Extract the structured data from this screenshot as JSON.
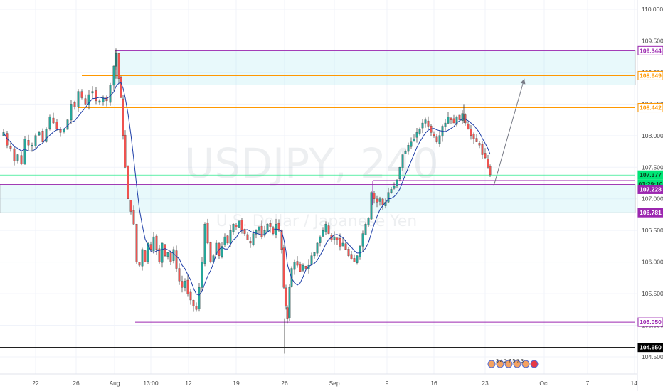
{
  "chart_data": {
    "type": "candlestick",
    "watermark": {
      "symbol": "USDJPY",
      "interval": "240",
      "description": "U.S. Dollar / Japanese Yen"
    },
    "y_axis": {
      "range": [
        104.32,
        110.22
      ],
      "ticks": [
        "110.000",
        "109.500",
        "109.000",
        "108.500",
        "108.000",
        "107.500",
        "107.000",
        "106.500",
        "106.000",
        "105.500",
        "105.000",
        "104.500"
      ]
    },
    "x_axis": {
      "ticks": [
        "22",
        "26",
        "Aug",
        "13:00",
        "12",
        "19",
        "26",
        "Sep",
        "9",
        "16",
        "23",
        "Oct",
        "7",
        "14"
      ]
    },
    "price_labels": [
      {
        "value": 109.344,
        "text": "109.344",
        "color": "#9c27b0",
        "style": "outline"
      },
      {
        "value": 108.949,
        "text": "108.949",
        "color": "#ff9800",
        "style": "outline"
      },
      {
        "value": 108.442,
        "text": "108.442",
        "color": "#ff9800",
        "style": "outline"
      },
      {
        "value": 107.377,
        "text": "107.377",
        "color": "#00e676",
        "style": "filled"
      },
      {
        "value": 107.229,
        "text": "03:29:10",
        "color": "#00e676",
        "style": "filled"
      },
      {
        "value": 107.228,
        "text": "107.228",
        "color": "#9c27b0",
        "style": "filled"
      },
      {
        "value": 106.781,
        "text": "106.781",
        "color": "#9c27b0",
        "style": "filled"
      },
      {
        "value": 105.05,
        "text": "105.050",
        "color": "#9c27b0",
        "style": "outline"
      },
      {
        "value": 104.65,
        "text": "104.650",
        "color": "#000000",
        "style": "filled"
      }
    ],
    "zones": [
      {
        "from": 108.8,
        "to": 109.344,
        "color": "#b2ebf2"
      },
      {
        "from": 106.781,
        "to": 107.228,
        "color": "#b2ebf2"
      }
    ],
    "levels": [
      {
        "value": 108.949,
        "color": "#ff9800"
      },
      {
        "value": 108.442,
        "color": "#ff9800"
      },
      {
        "value": 107.377,
        "color": "#00e676"
      },
      {
        "value": 105.05,
        "color": "#9c27b0"
      },
      {
        "value": 104.65,
        "color": "#000000"
      },
      {
        "value": 107.29,
        "color": "#9c27b0"
      }
    ],
    "projection": {
      "from": 107.2,
      "to": 108.9,
      "color": "#787b86"
    },
    "ohlc_close_path": [
      [
        0,
        108.0
      ],
      [
        5,
        108.05
      ],
      [
        10,
        107.85
      ],
      [
        15,
        107.8
      ],
      [
        20,
        107.6
      ],
      [
        25,
        107.7
      ],
      [
        30,
        107.55
      ],
      [
        35,
        107.95
      ],
      [
        40,
        107.85
      ],
      [
        45,
        107.85
      ],
      [
        50,
        108.0
      ],
      [
        55,
        108.05
      ],
      [
        60,
        107.9
      ],
      [
        65,
        108.1
      ],
      [
        70,
        108.3
      ],
      [
        75,
        108.2
      ],
      [
        80,
        108.1
      ],
      [
        85,
        108.05
      ],
      [
        90,
        108.1
      ],
      [
        95,
        108.25
      ],
      [
        100,
        108.5
      ],
      [
        105,
        108.45
      ],
      [
        110,
        108.7
      ],
      [
        115,
        108.6
      ],
      [
        120,
        108.5
      ],
      [
        125,
        108.65
      ],
      [
        130,
        108.7
      ],
      [
        135,
        108.55
      ],
      [
        140,
        108.55
      ],
      [
        145,
        108.6
      ],
      [
        150,
        108.55
      ],
      [
        155,
        108.8
      ],
      [
        160,
        109.1
      ],
      [
        163,
        109.3
      ],
      [
        167,
        108.9
      ],
      [
        170,
        108.6
      ],
      [
        173,
        108.0
      ],
      [
        176,
        107.5
      ],
      [
        180,
        107.0
      ],
      [
        184,
        106.8
      ],
      [
        188,
        106.6
      ],
      [
        192,
        106.0
      ],
      [
        196,
        105.95
      ],
      [
        200,
        106.2
      ],
      [
        204,
        106.0
      ],
      [
        208,
        106.3
      ],
      [
        212,
        106.2
      ],
      [
        216,
        106.4
      ],
      [
        220,
        106.2
      ],
      [
        224,
        106.0
      ],
      [
        228,
        106.3
      ],
      [
        232,
        106.1
      ],
      [
        236,
        106.15
      ],
      [
        240,
        106.0
      ],
      [
        244,
        106.2
      ],
      [
        248,
        105.9
      ],
      [
        252,
        105.7
      ],
      [
        256,
        105.6
      ],
      [
        260,
        105.7
      ],
      [
        264,
        105.5
      ],
      [
        268,
        105.4
      ],
      [
        272,
        105.3
      ],
      [
        276,
        105.25
      ],
      [
        280,
        105.6
      ],
      [
        284,
        106.0
      ],
      [
        288,
        106.6
      ],
      [
        292,
        106.3
      ],
      [
        296,
        106.0
      ],
      [
        300,
        106.1
      ],
      [
        304,
        106.3
      ],
      [
        308,
        106.1
      ],
      [
        312,
        106.25
      ],
      [
        316,
        106.4
      ],
      [
        320,
        106.3
      ],
      [
        324,
        106.5
      ],
      [
        328,
        106.6
      ],
      [
        332,
        106.55
      ],
      [
        336,
        106.65
      ],
      [
        340,
        106.5
      ],
      [
        344,
        106.45
      ],
      [
        348,
        106.35
      ],
      [
        352,
        106.3
      ],
      [
        356,
        106.45
      ],
      [
        360,
        106.5
      ],
      [
        364,
        106.55
      ],
      [
        368,
        106.4
      ],
      [
        372,
        106.5
      ],
      [
        376,
        106.6
      ],
      [
        380,
        106.55
      ],
      [
        384,
        106.45
      ],
      [
        388,
        106.6
      ],
      [
        392,
        106.5
      ],
      [
        396,
        106.2
      ],
      [
        399,
        105.6
      ],
      [
        402,
        105.3
      ],
      [
        404,
        105.1
      ],
      [
        407,
        105.6
      ],
      [
        410,
        105.9
      ],
      [
        414,
        106.0
      ],
      [
        418,
        105.95
      ],
      [
        422,
        105.85
      ],
      [
        426,
        105.95
      ],
      [
        430,
        105.9
      ],
      [
        434,
        105.95
      ],
      [
        438,
        106.1
      ],
      [
        442,
        106.15
      ],
      [
        446,
        106.3
      ],
      [
        450,
        106.4
      ],
      [
        454,
        106.5
      ],
      [
        458,
        106.6
      ],
      [
        462,
        106.45
      ],
      [
        466,
        106.35
      ],
      [
        470,
        106.4
      ],
      [
        474,
        106.35
      ],
      [
        478,
        106.25
      ],
      [
        482,
        106.3
      ],
      [
        486,
        106.2
      ],
      [
        490,
        106.1
      ],
      [
        494,
        106.05
      ],
      [
        498,
        106.0
      ],
      [
        502,
        106.1
      ],
      [
        506,
        106.25
      ],
      [
        510,
        106.45
      ],
      [
        514,
        106.6
      ],
      [
        518,
        106.7
      ],
      [
        522,
        107.1
      ],
      [
        526,
        107.0
      ],
      [
        530,
        106.95
      ],
      [
        534,
        107.0
      ],
      [
        538,
        106.9
      ],
      [
        542,
        106.95
      ],
      [
        546,
        107.1
      ],
      [
        550,
        107.15
      ],
      [
        554,
        107.2
      ],
      [
        558,
        107.3
      ],
      [
        562,
        107.5
      ],
      [
        566,
        107.7
      ],
      [
        570,
        107.75
      ],
      [
        574,
        107.85
      ],
      [
        578,
        107.9
      ],
      [
        582,
        107.95
      ],
      [
        586,
        108.05
      ],
      [
        590,
        108.1
      ],
      [
        594,
        108.2
      ],
      [
        598,
        108.25
      ],
      [
        602,
        108.15
      ],
      [
        606,
        108.05
      ],
      [
        610,
        108.0
      ],
      [
        614,
        107.9
      ],
      [
        618,
        108.0
      ],
      [
        622,
        108.15
      ],
      [
        626,
        108.2
      ],
      [
        630,
        108.3
      ],
      [
        634,
        108.25
      ],
      [
        638,
        108.2
      ],
      [
        642,
        108.3
      ],
      [
        646,
        108.25
      ],
      [
        650,
        108.35
      ],
      [
        654,
        108.2
      ],
      [
        658,
        108.1
      ],
      [
        662,
        108.0
      ],
      [
        666,
        107.95
      ],
      [
        670,
        107.9
      ],
      [
        674,
        107.85
      ],
      [
        678,
        107.7
      ],
      [
        682,
        107.65
      ],
      [
        686,
        107.5
      ],
      [
        689,
        107.38
      ]
    ],
    "events_marker_text": "3  4  2  7 5 7 3"
  }
}
